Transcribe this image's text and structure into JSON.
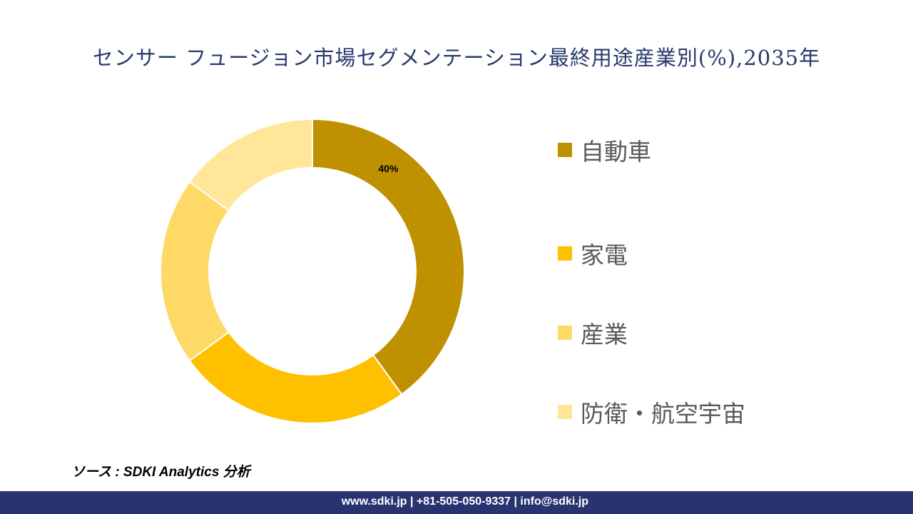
{
  "chart_data": {
    "type": "pie",
    "variant": "donut",
    "title": "センサー フュージョン市場セグメンテーション最終用途産業別(%),2035年",
    "categories": [
      "自動車",
      "家電",
      "産業",
      "防衛・航空宇宙"
    ],
    "values": [
      40,
      25,
      20,
      15
    ],
    "colors": [
      "#BF9000",
      "#FFC000",
      "#FFD966",
      "#FFE699"
    ],
    "data_labels": [
      "40%",
      "",
      "",
      ""
    ],
    "legend_position": "right"
  },
  "source": "ソース : SDKI Analytics 分析",
  "footer": "www.sdki.jp | +81-505-050-9337 | info@sdki.jp"
}
